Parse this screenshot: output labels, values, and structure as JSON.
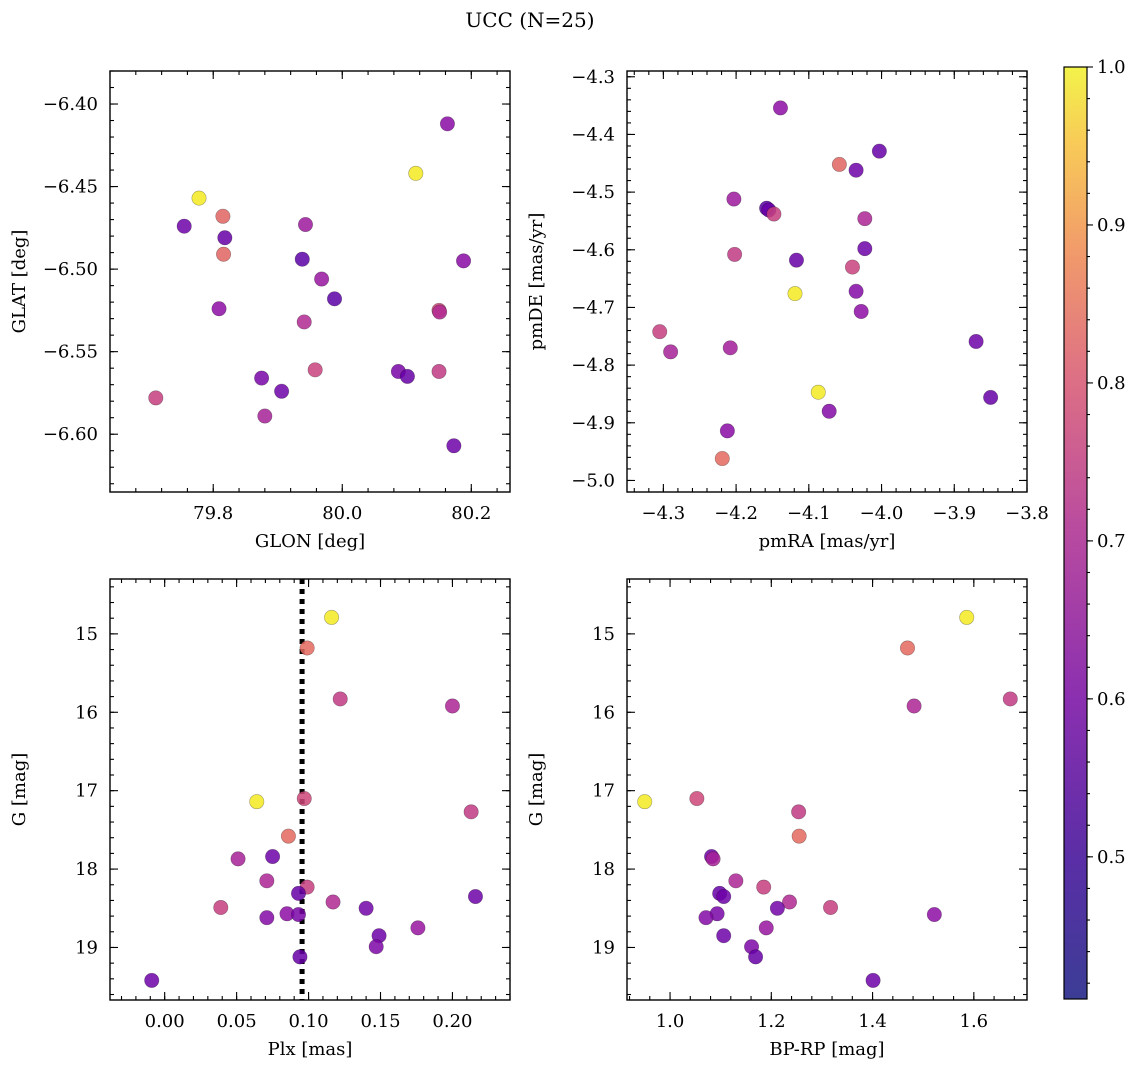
{
  "title": "UCC (N=25)",
  "colorbar": {
    "min": 0.41,
    "max": 1.0,
    "ticks": [
      0.5,
      0.6,
      0.7,
      0.8,
      0.9,
      1.0
    ],
    "tick_labels": [
      "0.5",
      "0.6",
      "0.7",
      "0.8",
      "0.9",
      "1.0"
    ],
    "colormap": "plasma",
    "alpha": 0.85
  },
  "chart_data": [
    {
      "type": "scatter",
      "xlabel": "GLON [deg]",
      "ylabel": "GLAT [deg]",
      "xlim": [
        79.64,
        80.26
      ],
      "ylim": [
        -6.635,
        -6.38
      ],
      "y_inverted": false,
      "xticks": [
        79.8,
        80.0,
        80.2
      ],
      "xtick_labels": [
        "79.8",
        "80.0",
        "80.2"
      ],
      "yticks": [
        -6.6,
        -6.55,
        -6.5,
        -6.45,
        -6.4
      ],
      "ytick_labels": [
        "−6.60",
        "−6.55",
        "−6.50",
        "−6.45",
        "−6.40"
      ],
      "xminor": 0.04,
      "yminor": 0.01,
      "points": [
        {
          "x": 80.163,
          "y": -6.412,
          "c": 0.52
        },
        {
          "x": 80.114,
          "y": -6.442,
          "c": 0.99
        },
        {
          "x": 79.778,
          "y": -6.457,
          "c": 0.99
        },
        {
          "x": 79.815,
          "y": -6.468,
          "c": 0.74
        },
        {
          "x": 79.755,
          "y": -6.474,
          "c": 0.47
        },
        {
          "x": 79.943,
          "y": -6.473,
          "c": 0.56
        },
        {
          "x": 79.818,
          "y": -6.481,
          "c": 0.46
        },
        {
          "x": 79.816,
          "y": -6.491,
          "c": 0.74
        },
        {
          "x": 79.938,
          "y": -6.494,
          "c": 0.44
        },
        {
          "x": 80.188,
          "y": -6.495,
          "c": 0.52
        },
        {
          "x": 79.968,
          "y": -6.506,
          "c": 0.55
        },
        {
          "x": 79.988,
          "y": -6.518,
          "c": 0.44
        },
        {
          "x": 79.809,
          "y": -6.524,
          "c": 0.53
        },
        {
          "x": 80.15,
          "y": -6.525,
          "c": 0.68
        },
        {
          "x": 80.151,
          "y": -6.526,
          "c": 0.6
        },
        {
          "x": 79.941,
          "y": -6.532,
          "c": 0.6
        },
        {
          "x": 79.958,
          "y": -6.561,
          "c": 0.66
        },
        {
          "x": 80.15,
          "y": -6.562,
          "c": 0.64
        },
        {
          "x": 80.087,
          "y": -6.562,
          "c": 0.49
        },
        {
          "x": 80.101,
          "y": -6.565,
          "c": 0.46
        },
        {
          "x": 79.875,
          "y": -6.566,
          "c": 0.49
        },
        {
          "x": 79.906,
          "y": -6.574,
          "c": 0.47
        },
        {
          "x": 79.711,
          "y": -6.578,
          "c": 0.65
        },
        {
          "x": 79.88,
          "y": -6.589,
          "c": 0.58
        },
        {
          "x": 80.173,
          "y": -6.607,
          "c": 0.47
        }
      ]
    },
    {
      "type": "scatter",
      "xlabel": "pmRA [mas/yr]",
      "ylabel": "pmDE [mas/yr]",
      "xlim": [
        -4.35,
        -3.8
      ],
      "ylim": [
        -5.02,
        -4.29
      ],
      "y_inverted": false,
      "xticks": [
        -4.3,
        -4.2,
        -4.1,
        -4.0,
        -3.9,
        -3.8
      ],
      "xtick_labels": [
        "−4.3",
        "−4.2",
        "−4.1",
        "−4.0",
        "−3.9",
        "−3.8"
      ],
      "yticks": [
        -5.0,
        -4.9,
        -4.8,
        -4.7,
        -4.6,
        -4.5,
        -4.4,
        -4.3
      ],
      "ytick_labels": [
        "−5.0",
        "−4.9",
        "−4.8",
        "−4.7",
        "−4.6",
        "−4.5",
        "−4.4",
        "−4.3"
      ],
      "xminor": 0.02,
      "yminor": 0.02,
      "points": [
        {
          "x": -4.139,
          "y": -4.354,
          "c": 0.53
        },
        {
          "x": -4.003,
          "y": -4.429,
          "c": 0.46
        },
        {
          "x": -4.058,
          "y": -4.452,
          "c": 0.74
        },
        {
          "x": -4.035,
          "y": -4.462,
          "c": 0.47
        },
        {
          "x": -4.203,
          "y": -4.512,
          "c": 0.56
        },
        {
          "x": -4.158,
          "y": -4.528,
          "c": 0.44
        },
        {
          "x": -4.155,
          "y": -4.531,
          "c": 0.46
        },
        {
          "x": -4.148,
          "y": -4.538,
          "c": 0.65
        },
        {
          "x": -4.023,
          "y": -4.546,
          "c": 0.59
        },
        {
          "x": -4.023,
          "y": -4.598,
          "c": 0.47
        },
        {
          "x": -4.202,
          "y": -4.608,
          "c": 0.64
        },
        {
          "x": -4.117,
          "y": -4.618,
          "c": 0.46
        },
        {
          "x": -4.04,
          "y": -4.63,
          "c": 0.66
        },
        {
          "x": -4.035,
          "y": -4.672,
          "c": 0.51
        },
        {
          "x": -4.119,
          "y": -4.676,
          "c": 0.99
        },
        {
          "x": -4.028,
          "y": -4.707,
          "c": 0.53
        },
        {
          "x": -4.305,
          "y": -4.742,
          "c": 0.65
        },
        {
          "x": -3.87,
          "y": -4.759,
          "c": 0.47
        },
        {
          "x": -4.208,
          "y": -4.77,
          "c": 0.57
        },
        {
          "x": -4.29,
          "y": -4.777,
          "c": 0.58
        },
        {
          "x": -4.087,
          "y": -4.847,
          "c": 0.99
        },
        {
          "x": -3.85,
          "y": -4.856,
          "c": 0.46
        },
        {
          "x": -4.072,
          "y": -4.88,
          "c": 0.51
        },
        {
          "x": -4.212,
          "y": -4.914,
          "c": 0.52
        },
        {
          "x": -4.219,
          "y": -4.962,
          "c": 0.75
        }
      ]
    },
    {
      "type": "scatter",
      "xlabel": "Plx [mas]",
      "ylabel": "G [mag]",
      "xlim": [
        -0.038,
        0.24
      ],
      "ylim": [
        19.67,
        14.3
      ],
      "y_inverted": true,
      "xticks": [
        0.0,
        0.05,
        0.1,
        0.15,
        0.2
      ],
      "xtick_labels": [
        "0.00",
        "0.05",
        "0.10",
        "0.15",
        "0.20"
      ],
      "yticks": [
        15,
        16,
        17,
        18,
        19
      ],
      "ytick_labels": [
        "15",
        "16",
        "17",
        "18",
        "19"
      ],
      "xminor": 0.01,
      "yminor": 0.2,
      "vline": {
        "x": 0.0955,
        "style": "dotted"
      },
      "points": [
        {
          "x": 0.116,
          "y": 14.79,
          "c": 0.99
        },
        {
          "x": 0.099,
          "y": 15.18,
          "c": 0.75
        },
        {
          "x": 0.122,
          "y": 15.83,
          "c": 0.64
        },
        {
          "x": 0.2,
          "y": 15.92,
          "c": 0.59
        },
        {
          "x": 0.097,
          "y": 17.1,
          "c": 0.67
        },
        {
          "x": 0.064,
          "y": 17.14,
          "c": 0.99
        },
        {
          "x": 0.213,
          "y": 17.27,
          "c": 0.64
        },
        {
          "x": 0.086,
          "y": 17.58,
          "c": 0.75
        },
        {
          "x": 0.075,
          "y": 17.84,
          "c": 0.47
        },
        {
          "x": 0.051,
          "y": 17.87,
          "c": 0.58
        },
        {
          "x": 0.071,
          "y": 18.15,
          "c": 0.59
        },
        {
          "x": 0.099,
          "y": 18.23,
          "c": 0.65
        },
        {
          "x": 0.093,
          "y": 18.31,
          "c": 0.46
        },
        {
          "x": 0.216,
          "y": 18.35,
          "c": 0.47
        },
        {
          "x": 0.117,
          "y": 18.42,
          "c": 0.6
        },
        {
          "x": 0.039,
          "y": 18.49,
          "c": 0.65
        },
        {
          "x": 0.14,
          "y": 18.5,
          "c": 0.48
        },
        {
          "x": 0.085,
          "y": 18.57,
          "c": 0.53
        },
        {
          "x": 0.093,
          "y": 18.58,
          "c": 0.49
        },
        {
          "x": 0.071,
          "y": 18.62,
          "c": 0.51
        },
        {
          "x": 0.176,
          "y": 18.75,
          "c": 0.55
        },
        {
          "x": 0.149,
          "y": 18.85,
          "c": 0.47
        },
        {
          "x": 0.147,
          "y": 18.99,
          "c": 0.5
        },
        {
          "x": 0.094,
          "y": 19.12,
          "c": 0.46
        },
        {
          "x": -0.009,
          "y": 19.42,
          "c": 0.47
        }
      ]
    },
    {
      "type": "scatter",
      "xlabel": "BP-RP [mag]",
      "ylabel": "G [mag]",
      "xlim": [
        0.915,
        1.705
      ],
      "ylim": [
        19.67,
        14.3
      ],
      "y_inverted": true,
      "xticks": [
        1.0,
        1.2,
        1.4,
        1.6
      ],
      "xtick_labels": [
        "1.0",
        "1.2",
        "1.4",
        "1.6"
      ],
      "yticks": [
        15,
        16,
        17,
        18,
        19
      ],
      "ytick_labels": [
        "15",
        "16",
        "17",
        "18",
        "19"
      ],
      "xminor": 0.04,
      "yminor": 0.2,
      "points": [
        {
          "x": 1.586,
          "y": 14.79,
          "c": 0.99
        },
        {
          "x": 1.469,
          "y": 15.18,
          "c": 0.75
        },
        {
          "x": 1.672,
          "y": 15.83,
          "c": 0.64
        },
        {
          "x": 1.482,
          "y": 15.92,
          "c": 0.59
        },
        {
          "x": 1.053,
          "y": 17.1,
          "c": 0.67
        },
        {
          "x": 0.95,
          "y": 17.14,
          "c": 0.99
        },
        {
          "x": 1.254,
          "y": 17.27,
          "c": 0.64
        },
        {
          "x": 1.255,
          "y": 17.58,
          "c": 0.75
        },
        {
          "x": 1.082,
          "y": 17.84,
          "c": 0.47
        },
        {
          "x": 1.085,
          "y": 17.87,
          "c": 0.58
        },
        {
          "x": 1.13,
          "y": 18.15,
          "c": 0.59
        },
        {
          "x": 1.185,
          "y": 18.23,
          "c": 0.65
        },
        {
          "x": 1.098,
          "y": 18.31,
          "c": 0.46
        },
        {
          "x": 1.106,
          "y": 18.35,
          "c": 0.47
        },
        {
          "x": 1.236,
          "y": 18.42,
          "c": 0.6
        },
        {
          "x": 1.317,
          "y": 18.49,
          "c": 0.65
        },
        {
          "x": 1.212,
          "y": 18.5,
          "c": 0.48
        },
        {
          "x": 1.522,
          "y": 18.58,
          "c": 0.53
        },
        {
          "x": 1.093,
          "y": 18.57,
          "c": 0.49
        },
        {
          "x": 1.071,
          "y": 18.62,
          "c": 0.51
        },
        {
          "x": 1.19,
          "y": 18.75,
          "c": 0.55
        },
        {
          "x": 1.106,
          "y": 18.85,
          "c": 0.47
        },
        {
          "x": 1.161,
          "y": 18.99,
          "c": 0.5
        },
        {
          "x": 1.169,
          "y": 19.12,
          "c": 0.46
        },
        {
          "x": 1.401,
          "y": 19.42,
          "c": 0.47
        }
      ]
    }
  ]
}
